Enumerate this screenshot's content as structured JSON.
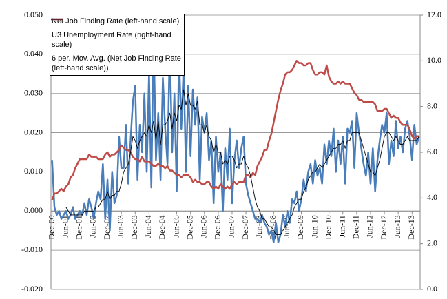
{
  "chart_data": {
    "type": "line",
    "categories": [
      "Dec-00",
      null,
      null,
      null,
      null,
      null,
      "Jun-01",
      null,
      null,
      null,
      null,
      null,
      "Dec-01",
      null,
      null,
      null,
      null,
      null,
      "Jun-02",
      null,
      null,
      null,
      null,
      null,
      "Dec-02",
      null,
      null,
      null,
      null,
      null,
      "Jun-03",
      null,
      null,
      null,
      null,
      null,
      "Dec-03",
      null,
      null,
      null,
      null,
      null,
      "Jun-04",
      null,
      null,
      null,
      null,
      null,
      "Dec-04",
      null,
      null,
      null,
      null,
      null,
      "Jun-05",
      null,
      null,
      null,
      null,
      null,
      "Dec-05",
      null,
      null,
      null,
      null,
      null,
      "Jun-06",
      null,
      null,
      null,
      null,
      null,
      "Dec-06",
      null,
      null,
      null,
      null,
      null,
      "Jun-07",
      null,
      null,
      null,
      null,
      null,
      "Dec-07",
      null,
      null,
      null,
      null,
      null,
      "Jun-08",
      null,
      null,
      null,
      null,
      null,
      "Dec-08",
      null,
      null,
      null,
      null,
      null,
      "Jun-09",
      null,
      null,
      null,
      null,
      null,
      "Dec-09",
      null,
      null,
      null,
      null,
      null,
      "Jun-10",
      null,
      null,
      null,
      null,
      null,
      "Dec-10",
      null,
      null,
      null,
      null,
      null,
      "Jun-11",
      null,
      null,
      null,
      null,
      null,
      "Dec-11",
      null,
      null,
      null,
      null,
      null,
      "Jun-12",
      null,
      null,
      null,
      null,
      null,
      "Dec-12",
      null,
      null,
      null,
      null,
      null,
      "Jun-13",
      null,
      null,
      null,
      null,
      null,
      "Dec-13",
      null,
      null,
      null
    ],
    "series": [
      {
        "name": "Net Job Finding Rate (left-hand scale)",
        "color": "#4a7ebb",
        "width": 2.5,
        "values": [
          0.013,
          0.001,
          -0.001,
          0.0,
          -0.002,
          -0.001,
          0.0,
          -0.002,
          -0.001,
          0.001,
          -0.002,
          -0.001,
          0.0,
          -0.001,
          0.002,
          -0.001,
          0.003,
          0.001,
          -0.002,
          0.002,
          0.005,
          0.003,
          0.012,
          -0.002,
          0.008,
          -0.005,
          0.01,
          0.002,
          0.004,
          0.019,
          0.011,
          0.011,
          0.022,
          0.007,
          0.018,
          0.028,
          0.032,
          0.008,
          0.022,
          0.015,
          0.03,
          0.01,
          0.035,
          0.006,
          0.045,
          0.013,
          0.025,
          0.008,
          0.034,
          0.021,
          0.012,
          0.043,
          0.015,
          0.03,
          0.005,
          0.04,
          0.021,
          0.037,
          0.01,
          0.032,
          0.014,
          0.031,
          0.022,
          0.029,
          0.008,
          0.024,
          0.02,
          0.025,
          0.013,
          0.018,
          0.002,
          0.019,
          0.01,
          0.015,
          0.0,
          0.016,
          0.008,
          0.021,
          0.002,
          0.013,
          0.018,
          0.011,
          0.016,
          0.019,
          0.007,
          0.004,
          0.002,
          0.0,
          -0.002,
          -0.002,
          -0.003,
          -0.001,
          -0.003,
          -0.004,
          -0.006,
          -0.005,
          -0.008,
          -0.003,
          -0.008,
          -0.006,
          -0.001,
          -0.004,
          0.0,
          -0.003,
          0.003,
          0.002,
          0.005,
          0.0,
          0.003,
          0.008,
          0.005,
          0.01,
          0.012,
          0.007,
          0.013,
          0.009,
          0.011,
          0.007,
          0.017,
          0.012,
          0.018,
          0.014,
          0.021,
          0.01,
          0.018,
          0.012,
          0.019,
          0.007,
          0.021,
          0.02,
          0.023,
          0.011,
          0.025,
          0.02,
          0.016,
          0.012,
          0.009,
          0.015,
          0.007,
          0.016,
          0.005,
          0.013,
          0.018,
          0.022,
          0.02,
          0.025,
          0.012,
          0.018,
          0.014,
          0.023,
          0.016,
          0.019,
          0.015,
          0.021,
          0.023,
          0.019,
          0.013,
          0.022,
          0.017,
          0.019
        ]
      },
      {
        "name": "U3 Unemployment Rate (right-hand scale)",
        "color": "#be4b48",
        "width": 2.5,
        "axis": "y2",
        "values": [
          3.9,
          4.2,
          4.2,
          4.3,
          4.4,
          4.3,
          4.5,
          4.6,
          4.9,
          5.0,
          5.3,
          5.5,
          5.7,
          5.7,
          5.7,
          5.7,
          5.9,
          5.8,
          5.8,
          5.8,
          5.7,
          5.7,
          5.7,
          5.9,
          6.0,
          5.8,
          5.9,
          5.9,
          6.0,
          6.1,
          6.3,
          6.2,
          6.1,
          6.1,
          6.0,
          5.8,
          5.7,
          5.7,
          5.6,
          5.8,
          5.6,
          5.6,
          5.6,
          5.5,
          5.4,
          5.4,
          5.5,
          5.4,
          5.4,
          5.3,
          5.4,
          5.2,
          5.2,
          5.1,
          5.0,
          5.0,
          4.9,
          5.0,
          5.0,
          5.0,
          4.9,
          4.7,
          4.8,
          4.7,
          4.7,
          4.6,
          4.6,
          4.7,
          4.7,
          4.5,
          4.4,
          4.5,
          4.4,
          4.6,
          4.5,
          4.4,
          4.5,
          4.4,
          4.6,
          4.7,
          4.6,
          4.7,
          4.7,
          4.7,
          5.0,
          5.0,
          4.9,
          5.1,
          5.0,
          5.4,
          5.6,
          5.8,
          6.1,
          6.1,
          6.5,
          6.8,
          7.3,
          7.8,
          8.3,
          8.7,
          9.0,
          9.4,
          9.5,
          9.5,
          9.6,
          9.8,
          10.0,
          9.9,
          9.9,
          9.8,
          9.8,
          9.9,
          9.9,
          9.6,
          9.4,
          9.4,
          9.5,
          9.5,
          9.4,
          9.8,
          9.3,
          9.1,
          9.0,
          9.0,
          9.1,
          9.0,
          9.1,
          9.0,
          9.0,
          9.0,
          8.8,
          8.6,
          8.5,
          8.3,
          8.3,
          8.2,
          8.2,
          8.2,
          8.2,
          8.2,
          8.1,
          7.8,
          7.8,
          7.8,
          7.9,
          7.9,
          7.7,
          7.5,
          7.6,
          7.5,
          7.5,
          7.3,
          7.2,
          7.2,
          7.2,
          7.0,
          6.7,
          6.6,
          6.7,
          6.7
        ]
      },
      {
        "name": "6 per. Mov. Avg. (Net Job Finding Rate (left-hand scale))",
        "color": "#000000",
        "width": 0.9,
        "values": [
          null,
          null,
          null,
          null,
          null,
          null,
          0.001,
          0.0,
          -0.001,
          -0.001,
          -0.001,
          -0.001,
          -0.001,
          -0.001,
          0.0,
          0.0,
          0.0,
          0.0,
          0.0,
          0.001,
          0.001,
          0.002,
          0.003,
          0.003,
          0.005,
          0.003,
          0.004,
          0.004,
          0.005,
          0.005,
          0.007,
          0.01,
          0.011,
          0.012,
          0.015,
          0.019,
          0.018,
          0.016,
          0.018,
          0.019,
          0.02,
          0.019,
          0.022,
          0.02,
          0.023,
          0.018,
          0.023,
          0.017,
          0.022,
          0.022,
          0.023,
          0.025,
          0.021,
          0.025,
          0.023,
          0.027,
          0.026,
          0.031,
          0.027,
          0.03,
          0.027,
          0.027,
          0.026,
          0.028,
          0.022,
          0.022,
          0.02,
          0.022,
          0.019,
          0.018,
          0.015,
          0.017,
          0.015,
          0.015,
          0.012,
          0.013,
          0.012,
          0.014,
          0.014,
          0.013,
          0.011,
          0.012,
          0.012,
          0.014,
          0.012,
          0.011,
          0.009,
          0.006,
          0.003,
          0.001,
          0.0,
          -0.002,
          -0.002,
          -0.003,
          -0.004,
          -0.004,
          -0.005,
          -0.006,
          -0.006,
          -0.006,
          -0.005,
          -0.004,
          -0.003,
          -0.002,
          -0.001,
          0.001,
          0.002,
          0.003,
          0.003,
          0.005,
          0.006,
          0.008,
          0.009,
          0.01,
          0.01,
          0.011,
          0.012,
          0.011,
          0.012,
          0.013,
          0.014,
          0.015,
          0.016,
          0.016,
          0.017,
          0.017,
          0.018,
          0.016,
          0.018,
          0.018,
          0.02,
          0.02,
          0.02,
          0.02,
          0.018,
          0.016,
          0.014,
          0.012,
          0.01,
          0.01,
          0.009,
          0.011,
          0.013,
          0.016,
          0.019,
          0.02,
          0.02,
          0.019,
          0.018,
          0.019,
          0.018,
          0.017,
          0.017,
          0.018,
          0.019,
          0.018,
          0.018,
          0.018,
          0.018,
          0.019
        ]
      }
    ],
    "ylim": [
      -0.02,
      0.05
    ],
    "yticks": [
      {
        "value": -0.02,
        "label": "-0.020"
      },
      {
        "value": -0.01,
        "label": "-0.010"
      },
      {
        "value": 0,
        "label": "0.000"
      },
      {
        "value": 0.01,
        "label": "0.010"
      },
      {
        "value": 0.02,
        "label": "0.020"
      },
      {
        "value": 0.03,
        "label": "0.030"
      },
      {
        "value": 0.04,
        "label": "0.040"
      },
      {
        "value": 0.05,
        "label": "0.050"
      }
    ],
    "y2lim": [
      0,
      12
    ],
    "y2ticks": [
      {
        "value": 0,
        "label": "0.0"
      },
      {
        "value": 2,
        "label": "2.0"
      },
      {
        "value": 4,
        "label": "4.0"
      },
      {
        "value": 6,
        "label": "6.0"
      },
      {
        "value": 8,
        "label": "8.0"
      },
      {
        "value": 10,
        "label": "10.0"
      },
      {
        "value": 12,
        "label": "12.0"
      }
    ],
    "grid": true,
    "legend": "top-left"
  }
}
